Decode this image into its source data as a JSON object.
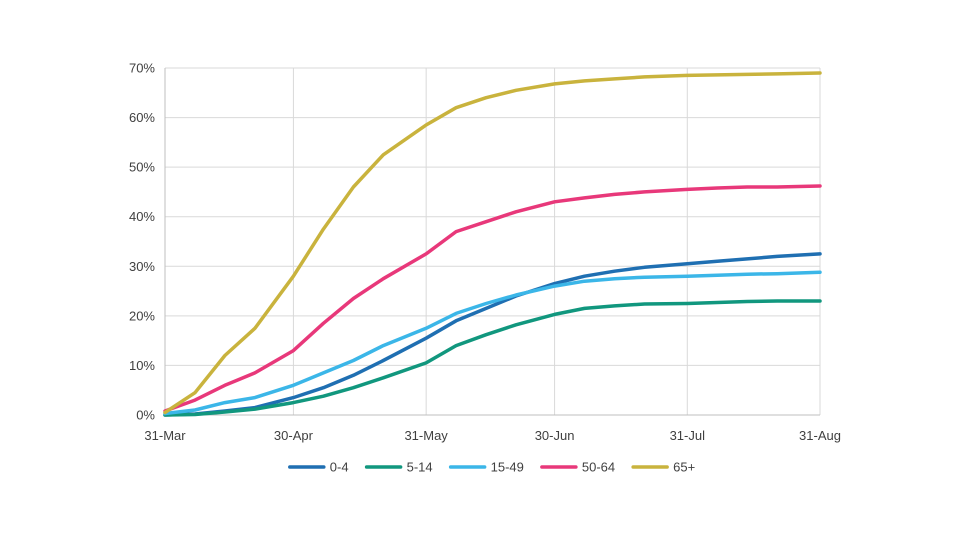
{
  "chart_data": {
    "type": "line",
    "title": "",
    "xlabel": "",
    "ylabel": "",
    "x_ticks": [
      "31-Mar",
      "30-Apr",
      "31-May",
      "30-Jun",
      "31-Jul",
      "31-Aug"
    ],
    "x_tick_days": [
      0,
      30,
      61,
      91,
      122,
      153
    ],
    "y_ticks": [
      "0%",
      "10%",
      "20%",
      "30%",
      "40%",
      "50%",
      "60%",
      "70%"
    ],
    "ylim": [
      0,
      70
    ],
    "grid": true,
    "legend_position": "bottom",
    "x_dates": [
      "31-Mar",
      "7-Apr",
      "14-Apr",
      "21-Apr",
      "30-Apr",
      "7-May",
      "14-May",
      "21-May",
      "31-May",
      "7-Jun",
      "14-Jun",
      "21-Jun",
      "30-Jun",
      "7-Jul",
      "14-Jul",
      "21-Jul",
      "31-Jul",
      "7-Aug",
      "14-Aug",
      "21-Aug",
      "31-Aug"
    ],
    "x": [
      0,
      7,
      14,
      21,
      30,
      37,
      44,
      51,
      61,
      68,
      75,
      82,
      91,
      98,
      105,
      112,
      122,
      129,
      136,
      143,
      153
    ],
    "series": [
      {
        "name": "0-4",
        "color": "#1f6fb2",
        "values": [
          0,
          0.2,
          0.8,
          1.5,
          3.5,
          5.5,
          8,
          11,
          15.5,
          19,
          21.5,
          24,
          26.5,
          28,
          29,
          29.8,
          30.5,
          31,
          31.5,
          32,
          32.5
        ]
      },
      {
        "name": "5-14",
        "color": "#11977e",
        "values": [
          0,
          0.1,
          0.6,
          1.2,
          2.5,
          3.8,
          5.5,
          7.5,
          10.5,
          14,
          16.2,
          18.2,
          20.3,
          21.5,
          22,
          22.4,
          22.5,
          22.7,
          22.9,
          23,
          23
        ]
      },
      {
        "name": "15-49",
        "color": "#3bb6e8",
        "values": [
          0.3,
          1,
          2.5,
          3.5,
          6,
          8.5,
          11,
          14,
          17.5,
          20.5,
          22.5,
          24.2,
          26,
          27,
          27.5,
          27.8,
          28,
          28.2,
          28.4,
          28.5,
          28.8
        ]
      },
      {
        "name": "50-64",
        "color": "#e8387a",
        "values": [
          0.8,
          3,
          6,
          8.5,
          13,
          18.5,
          23.5,
          27.5,
          32.5,
          37,
          39,
          41,
          43,
          43.8,
          44.5,
          45,
          45.5,
          45.8,
          46,
          46,
          46.2
        ]
      },
      {
        "name": "65+",
        "color": "#c9b33d",
        "values": [
          0.5,
          4.5,
          12,
          17.5,
          28,
          37.5,
          46,
          52.5,
          58.5,
          62,
          64,
          65.5,
          66.8,
          67.4,
          67.8,
          68.2,
          68.5,
          68.6,
          68.7,
          68.8,
          69
        ]
      }
    ]
  }
}
